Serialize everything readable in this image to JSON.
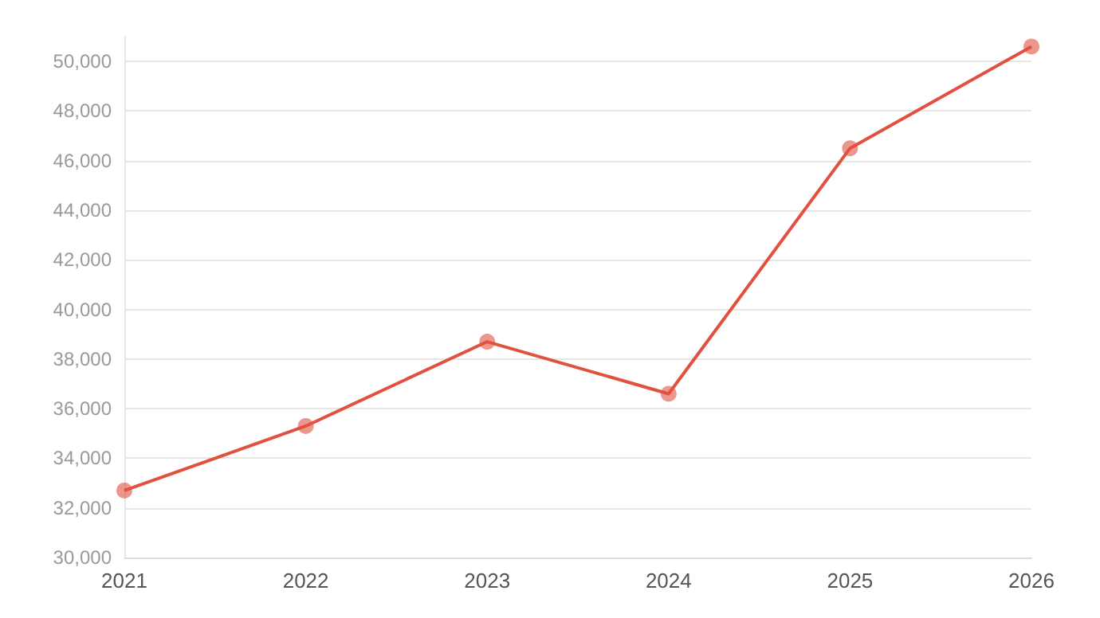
{
  "chart_data": {
    "type": "line",
    "categories": [
      "2021",
      "2022",
      "2023",
      "2024",
      "2025",
      "2026"
    ],
    "series": [
      {
        "color": "#e0513f",
        "values": [
          32700,
          35300,
          38700,
          36600,
          46500,
          50600
        ]
      }
    ],
    "ylim": [
      30000,
      51000
    ],
    "yticks": [
      {
        "value": 30000,
        "label": "30,000"
      },
      {
        "value": 32000,
        "label": "32,000"
      },
      {
        "value": 34000,
        "label": "34,000"
      },
      {
        "value": 36000,
        "label": "36,000"
      },
      {
        "value": 38000,
        "label": "38,000"
      },
      {
        "value": 40000,
        "label": "40,000"
      },
      {
        "value": 42000,
        "label": "42,000"
      },
      {
        "value": 44000,
        "label": "44,000"
      },
      {
        "value": 46000,
        "label": "46,000"
      },
      {
        "value": 48000,
        "label": "48,000"
      },
      {
        "value": 50000,
        "label": "50,000"
      }
    ],
    "grid": "y",
    "marker": "circle",
    "line_style": "solid"
  }
}
